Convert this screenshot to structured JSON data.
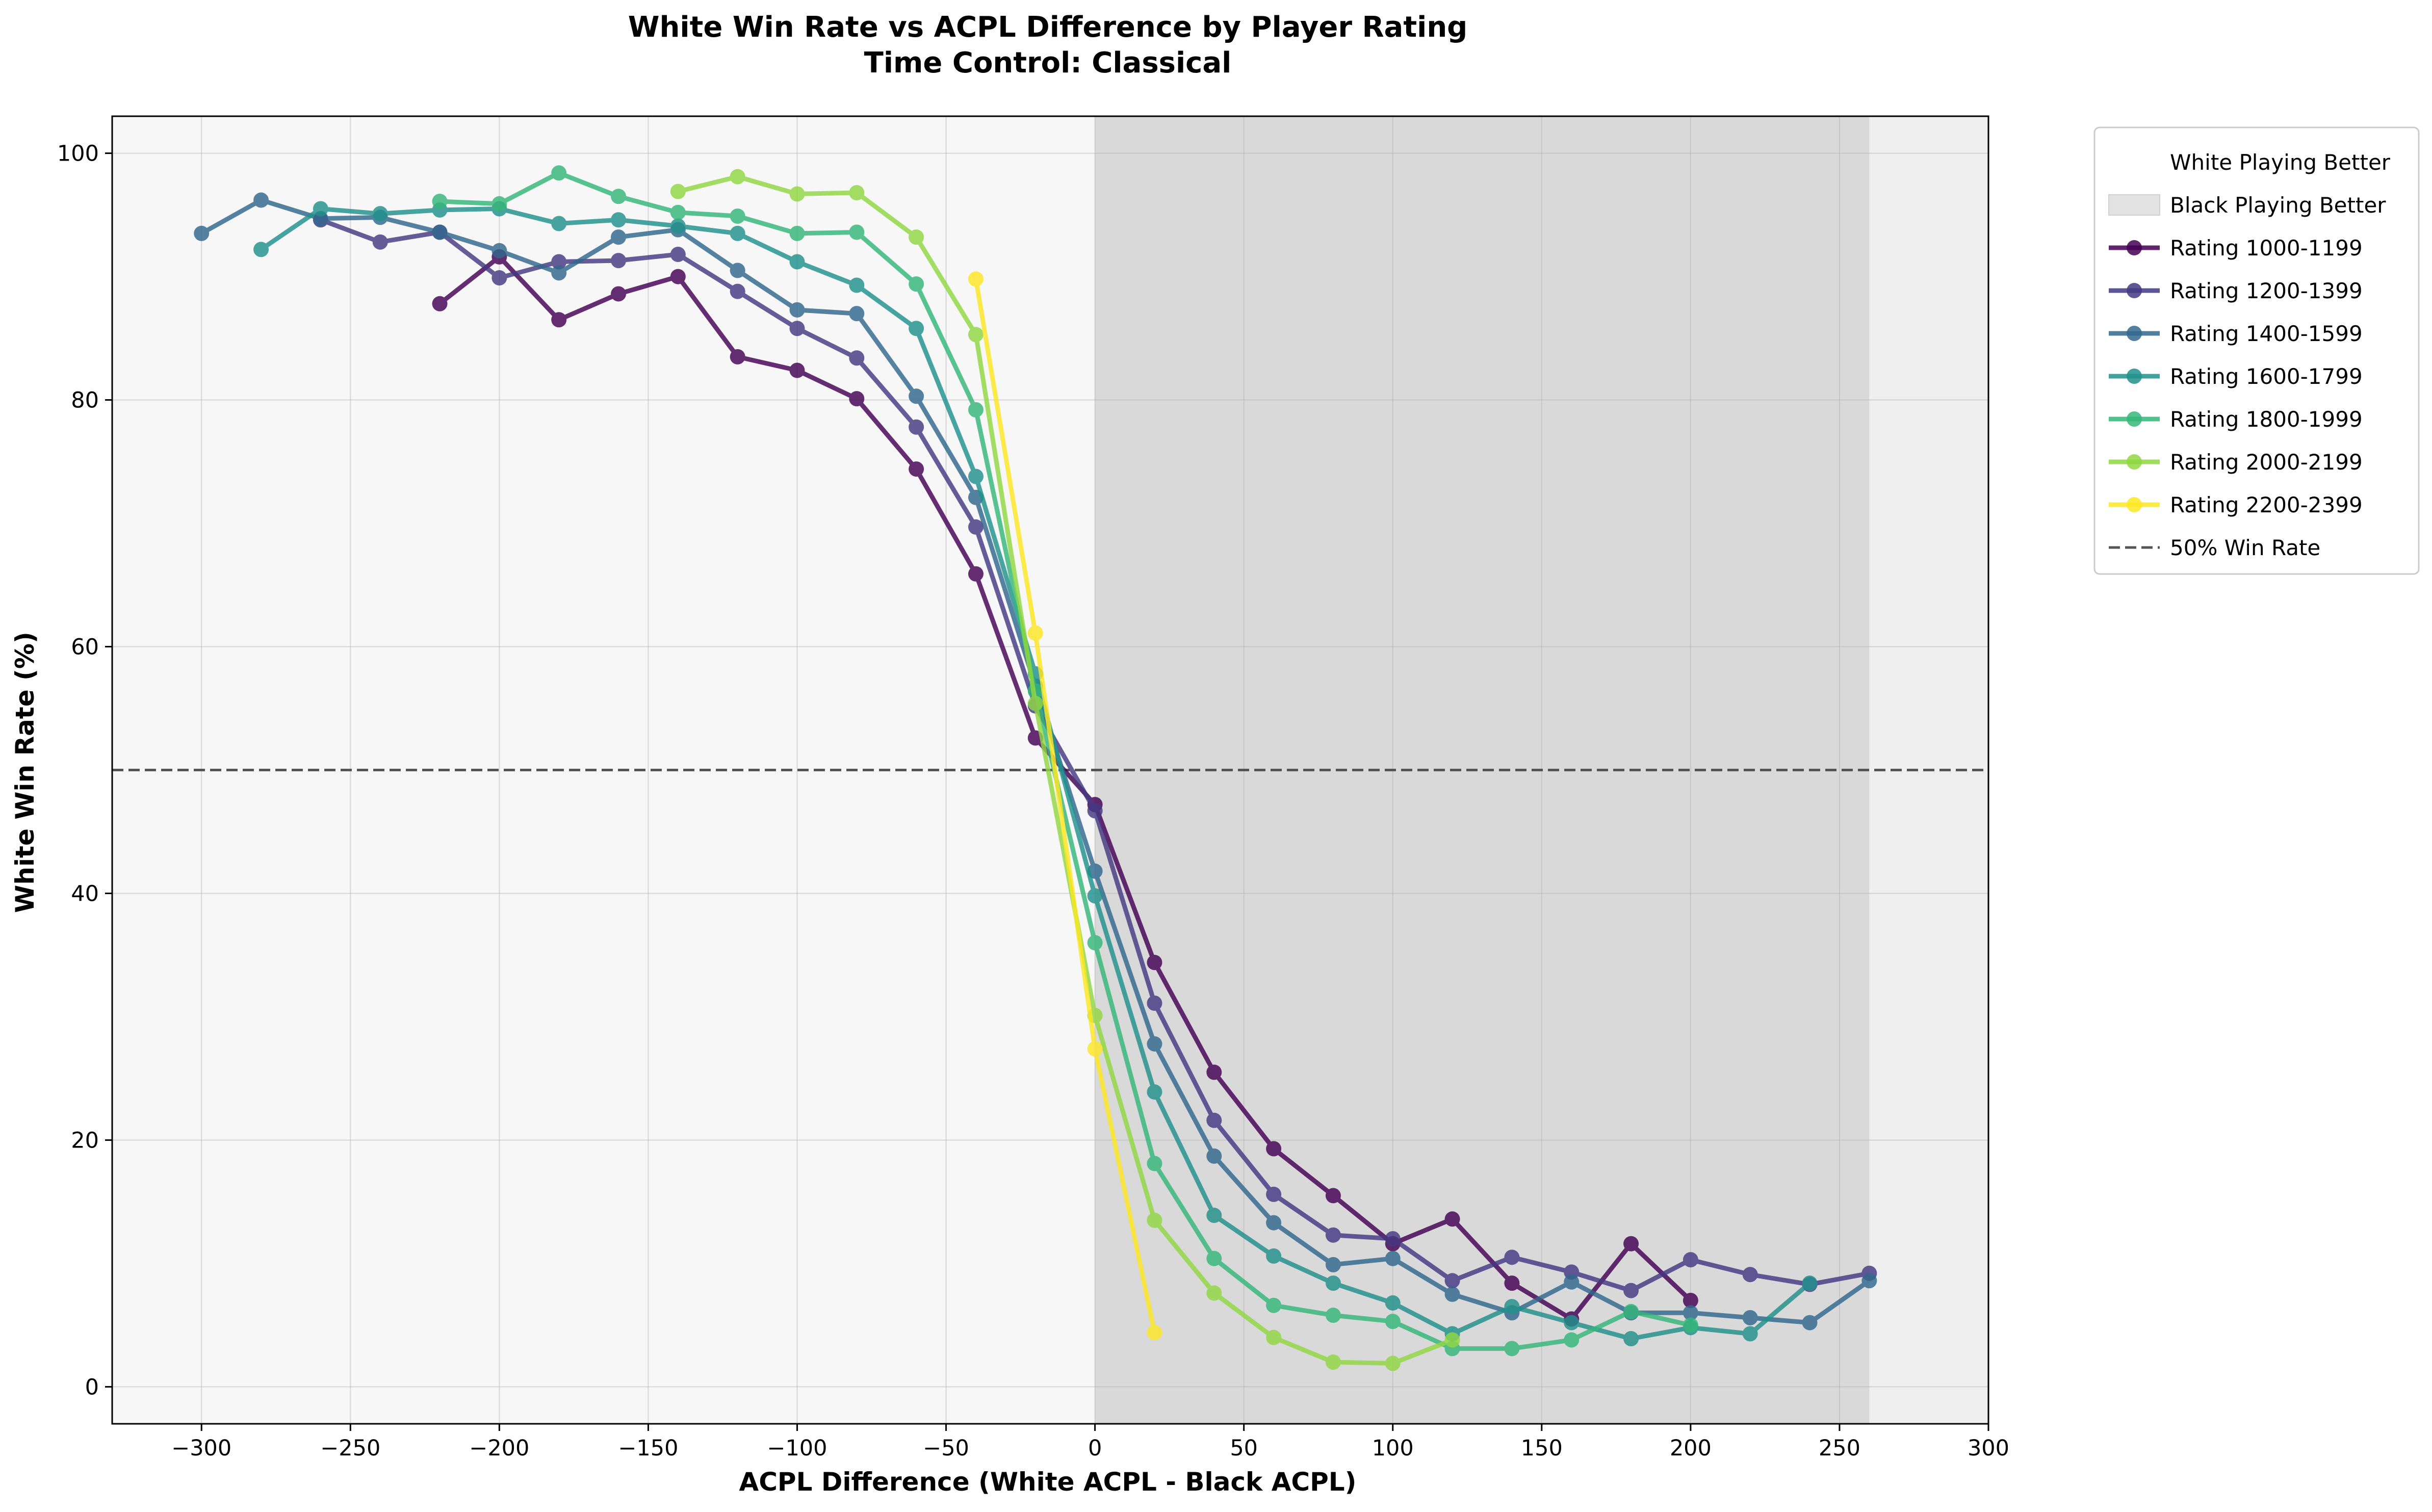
{
  "chart_data": {
    "type": "line",
    "title": "White Win Rate vs ACPL Difference by Player Rating",
    "subtitle": "Time Control: Classical",
    "xlabel": "ACPL Difference (White ACPL - Black ACPL)",
    "ylabel": "White Win Rate (%)",
    "xlim": [
      -330,
      300
    ],
    "ylim": [
      -3,
      103
    ],
    "xticks": [
      -300,
      -250,
      -200,
      -150,
      -100,
      -50,
      0,
      50,
      100,
      150,
      200,
      250,
      300
    ],
    "xtick_labels": [
      "−300",
      "−250",
      "−200",
      "−150",
      "−100",
      "−50",
      "0",
      "50",
      "100",
      "150",
      "200",
      "250",
      "300"
    ],
    "yticks": [
      0,
      20,
      40,
      60,
      80,
      100
    ],
    "ytick_labels": [
      "0",
      "20",
      "40",
      "60",
      "80",
      "100"
    ],
    "grid": true,
    "legend_position": "outside upper right",
    "regions": [
      {
        "name": "White Playing Better",
        "x_range": [
          -330,
          0
        ],
        "color": "#f7f7f7"
      },
      {
        "name": "Black Playing Better",
        "x_range": [
          0,
          260
        ],
        "color": "#d9d9d9"
      }
    ],
    "outer_background": "#efefef",
    "reference_line": {
      "name": "50% Win Rate",
      "y": 50,
      "style": "dashed",
      "color": "#555555"
    },
    "series": [
      {
        "name": "Rating 1000-1199",
        "color": "#440154",
        "x": [
          -220,
          -200,
          -180,
          -160,
          -140,
          -120,
          -100,
          -80,
          -60,
          -40,
          -20,
          0,
          20,
          40,
          60,
          80,
          100,
          120,
          140,
          160,
          180,
          200
        ],
        "y": [
          87.8,
          91.6,
          86.5,
          88.6,
          90.0,
          83.5,
          82.4,
          80.1,
          74.4,
          65.9,
          52.6,
          47.2,
          34.4,
          25.5,
          19.3,
          15.5,
          11.6,
          13.6,
          8.4,
          5.5,
          11.6,
          7.0
        ]
      },
      {
        "name": "Rating 1200-1399",
        "color": "#443983",
        "x": [
          -260,
          -240,
          -220,
          -200,
          -180,
          -160,
          -140,
          -120,
          -100,
          -80,
          -60,
          -40,
          -20,
          0,
          20,
          40,
          60,
          80,
          100,
          120,
          140,
          160,
          180,
          200,
          220,
          240,
          260
        ],
        "y": [
          94.6,
          92.8,
          93.6,
          89.9,
          91.2,
          91.3,
          91.8,
          88.8,
          85.8,
          83.4,
          77.8,
          69.7,
          55.2,
          46.7,
          31.1,
          21.6,
          15.6,
          12.3,
          12.0,
          8.6,
          10.5,
          9.3,
          7.8,
          10.3,
          9.1,
          8.3,
          9.2
        ]
      },
      {
        "name": "Rating 1400-1599",
        "color": "#31688e",
        "x": [
          -300,
          -280,
          -260,
          -240,
          -220,
          -200,
          -180,
          -160,
          -140,
          -120,
          -100,
          -80,
          -60,
          -40,
          -20,
          0,
          20,
          40,
          60,
          80,
          100,
          120,
          140,
          160,
          180,
          200,
          220,
          240,
          260
        ],
        "y": [
          93.5,
          96.2,
          94.7,
          94.8,
          93.6,
          92.1,
          90.3,
          93.2,
          93.8,
          90.5,
          87.3,
          87.0,
          80.3,
          72.1,
          56.8,
          41.8,
          27.8,
          18.7,
          13.3,
          9.9,
          10.4,
          7.5,
          6.0,
          8.5,
          6.0,
          6.0,
          5.6,
          5.2,
          8.6
        ]
      },
      {
        "name": "Rating 1600-1799",
        "color": "#21918c",
        "x": [
          -280,
          -260,
          -240,
          -220,
          -200,
          -180,
          -160,
          -140,
          -120,
          -100,
          -80,
          -60,
          -40,
          -20,
          0,
          20,
          40,
          60,
          80,
          100,
          120,
          140,
          160,
          180,
          200,
          220,
          240
        ],
        "y": [
          92.2,
          95.5,
          95.1,
          95.4,
          95.5,
          94.3,
          94.6,
          94.1,
          93.5,
          91.2,
          89.3,
          85.8,
          73.8,
          57.8,
          39.8,
          23.9,
          13.9,
          10.6,
          8.4,
          6.8,
          4.3,
          6.5,
          5.2,
          3.9,
          4.8,
          4.3,
          8.4
        ]
      },
      {
        "name": "Rating 1800-1999",
        "color": "#35b779",
        "x": [
          -220,
          -200,
          -180,
          -160,
          -140,
          -120,
          -100,
          -80,
          -60,
          -40,
          -20,
          0,
          20,
          40,
          60,
          80,
          100,
          120,
          140,
          160,
          180,
          200
        ],
        "y": [
          96.1,
          95.9,
          98.4,
          96.5,
          95.2,
          94.9,
          93.5,
          93.6,
          89.4,
          79.2,
          56.4,
          36.0,
          18.1,
          10.4,
          6.6,
          5.8,
          5.3,
          3.1,
          3.1,
          3.8,
          6.1,
          5.0
        ]
      },
      {
        "name": "Rating 2000-2199",
        "color": "#90d743",
        "x": [
          -140,
          -120,
          -100,
          -80,
          -60,
          -40,
          -20,
          0,
          20,
          40,
          60,
          80,
          100,
          120
        ],
        "y": [
          96.9,
          98.1,
          96.7,
          96.8,
          93.2,
          85.3,
          55.4,
          30.1,
          13.5,
          7.6,
          4.0,
          2.0,
          1.9,
          3.8
        ]
      },
      {
        "name": "Rating 2200-2399",
        "color": "#fde725",
        "x": [
          -40,
          -20,
          0,
          20
        ],
        "y": [
          89.8,
          61.1,
          27.4,
          4.4
        ]
      }
    ]
  }
}
